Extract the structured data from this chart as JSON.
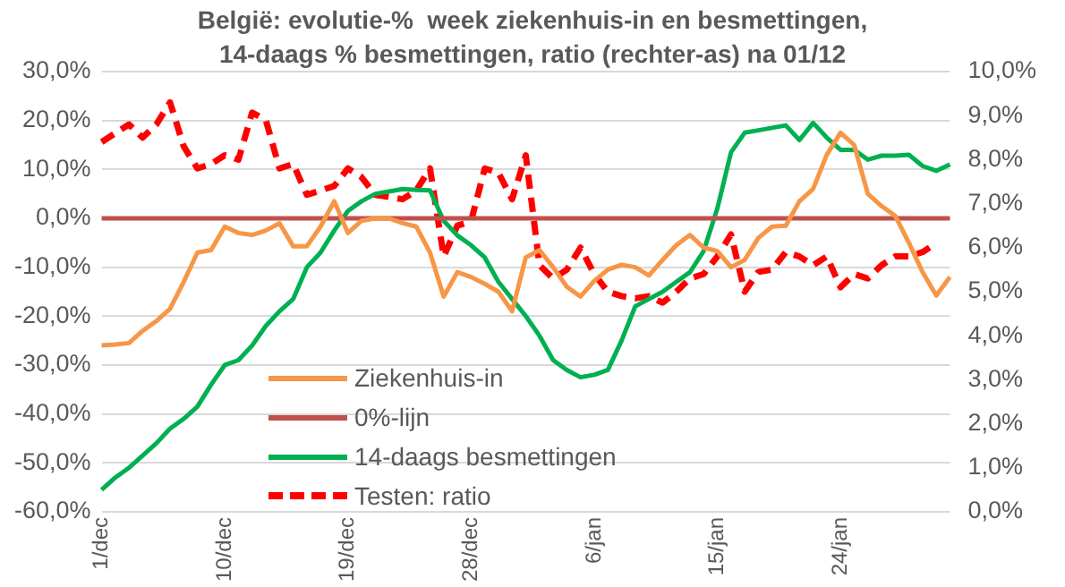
{
  "chart_data": {
    "type": "line",
    "title": "België: evolutie-%  week ziekenhuis-in en besmettingen, 14-daags % besmettingen, ratio (rechter-as) na 01/12",
    "categories": [
      "1/dec",
      null,
      null,
      null,
      null,
      null,
      null,
      null,
      null,
      "10/dec",
      null,
      null,
      null,
      null,
      null,
      null,
      null,
      null,
      "19/dec",
      null,
      null,
      null,
      null,
      null,
      null,
      null,
      null,
      "28/dec",
      null,
      null,
      null,
      null,
      null,
      null,
      null,
      null,
      "6/jan",
      null,
      null,
      null,
      null,
      null,
      null,
      null,
      null,
      "15/jan",
      null,
      null,
      null,
      null,
      null,
      null,
      null,
      null,
      "24/jan",
      null,
      null,
      null,
      null,
      null,
      null,
      null,
      null
    ],
    "series": [
      {
        "name": "Ziekenhuis-in",
        "color": "#f79646",
        "values": [
          -26,
          -25.8,
          -25.5,
          -23,
          -21,
          -18.5,
          -13,
          -7,
          -6.5,
          -1.7,
          -3,
          -3.4,
          -2.5,
          -1,
          -5.7,
          -5.7,
          -1.7,
          3.5,
          -3,
          -0.5,
          0,
          0,
          -1,
          -1.7,
          -7,
          -16,
          -11,
          -12,
          -13.4,
          -15,
          -19,
          -8,
          -6.5,
          -10,
          -14,
          -16,
          -12.8,
          -10.5,
          -9.5,
          -10,
          -11.7,
          -8.5,
          -5.5,
          -3.4,
          -6,
          -6.7,
          -10,
          -8.5,
          -4,
          -1.7,
          -1.5,
          3.5,
          6,
          13,
          17.5,
          15,
          5,
          2.5,
          0.5,
          -5,
          -11,
          -15.8,
          -12
        ]
      },
      {
        "name": "0%-lijn",
        "color": "#c0504d",
        "values": [
          0,
          0,
          0,
          0,
          0,
          0,
          0,
          0,
          0,
          0,
          0,
          0,
          0,
          0,
          0,
          0,
          0,
          0,
          0,
          0,
          0,
          0,
          0,
          0,
          0,
          0,
          0,
          0,
          0,
          0,
          0,
          0,
          0,
          0,
          0,
          0,
          0,
          0,
          0,
          0,
          0,
          0,
          0,
          0,
          0,
          0,
          0,
          0,
          0,
          0,
          0,
          0,
          0,
          0,
          0,
          0,
          0,
          0,
          0,
          0,
          0,
          0,
          0
        ]
      },
      {
        "name": "14-daags besmettingen",
        "color": "#00b050",
        "values": [
          -55.5,
          -53,
          -51,
          -48.5,
          -46,
          -43,
          -41,
          -38.5,
          -34,
          -30,
          -29,
          -26,
          -22,
          -19,
          -16.5,
          -10,
          -7,
          -2.5,
          1.5,
          3.5,
          5,
          5.5,
          6,
          5.8,
          5.7,
          -0.5,
          -3.5,
          -5.5,
          -8,
          -13,
          -16.5,
          -20,
          -24,
          -29,
          -31,
          -32.5,
          -32,
          -31,
          -25,
          -18,
          -16.5,
          -15,
          -13,
          -11,
          -6.7,
          2,
          13.5,
          17.5,
          18,
          18.5,
          19,
          16,
          19.5,
          16.5,
          14,
          14,
          12,
          12.8,
          12.8,
          13,
          10.7,
          9.7,
          11
        ]
      },
      {
        "name": "Testen: ratio",
        "color": "#ff0000",
        "axis": "y2",
        "line_style": "dashed",
        "values": [
          8.4,
          8.6,
          8.8,
          8.5,
          8.8,
          9.3,
          8.3,
          7.8,
          7.9,
          8.1,
          8.0,
          9.07,
          8.9,
          7.8,
          7.9,
          7.2,
          7.3,
          7.4,
          7.8,
          7.6,
          7.2,
          7.15,
          7.1,
          7.3,
          7.8,
          5.8,
          6.5,
          6.6,
          7.8,
          7.7,
          7.1,
          8.1,
          5.6,
          5.3,
          5.5,
          6.0,
          5.4,
          5.0,
          4.9,
          4.85,
          4.9,
          4.75,
          5.0,
          5.3,
          5.4,
          5.8,
          6.3,
          5.0,
          5.45,
          5.5,
          5.9,
          5.8,
          5.6,
          5.8,
          5.1,
          5.4,
          5.3,
          5.6,
          5.8,
          5.8,
          5.9,
          6.1,
          null
        ]
      }
    ],
    "ylim": [
      -60,
      30
    ],
    "yticks": [
      {
        "value": -60,
        "label": "-60,0%"
      },
      {
        "value": -50,
        "label": "-50,0%"
      },
      {
        "value": -40,
        "label": "-40,0%"
      },
      {
        "value": -30,
        "label": "-30,0%"
      },
      {
        "value": -20,
        "label": "-20,0%"
      },
      {
        "value": -10,
        "label": "-10,0%"
      },
      {
        "value": 0,
        "label": "0,0%"
      },
      {
        "value": 10,
        "label": "10,0%"
      },
      {
        "value": 20,
        "label": "20,0%"
      },
      {
        "value": 30,
        "label": "30,0%"
      }
    ],
    "y2lim": [
      0,
      10
    ],
    "y2ticks": [
      {
        "value": 0,
        "label": "0,0%"
      },
      {
        "value": 1,
        "label": "1,0%"
      },
      {
        "value": 2,
        "label": "2,0%"
      },
      {
        "value": 3,
        "label": "3,0%"
      },
      {
        "value": 4,
        "label": "4,0%"
      },
      {
        "value": 5,
        "label": "5,0%"
      },
      {
        "value": 6,
        "label": "6,0%"
      },
      {
        "value": 7,
        "label": "7,0%"
      },
      {
        "value": 8,
        "label": "8,0%"
      },
      {
        "value": 9,
        "label": "9,0%"
      },
      {
        "value": 10,
        "label": "10,0%"
      }
    ],
    "grid": "y",
    "legend": "bottom",
    "marker": "none",
    "line_style": "solid"
  }
}
